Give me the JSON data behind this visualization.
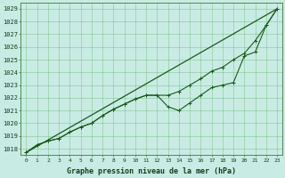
{
  "xlabel": "Graphe pression niveau de la mer (hPa)",
  "ylim": [
    1017.5,
    1029.5
  ],
  "xlim": [
    -0.5,
    23.5
  ],
  "yticks": [
    1018,
    1019,
    1020,
    1021,
    1022,
    1023,
    1024,
    1025,
    1026,
    1027,
    1028,
    1029
  ],
  "xticks": [
    0,
    1,
    2,
    3,
    4,
    5,
    6,
    7,
    8,
    9,
    10,
    11,
    12,
    13,
    14,
    15,
    16,
    17,
    18,
    19,
    20,
    21,
    22,
    23
  ],
  "background_color": "#c8ece4",
  "grid_color": "#5aaa5a",
  "line_color": "#1a5a1a",
  "marker_color": "#1a5a1a",
  "trend_x": [
    0,
    23
  ],
  "trend_y": [
    1017.7,
    1029.0
  ],
  "data_line1": [
    1017.7,
    1018.3,
    1018.6,
    1018.8,
    1019.3,
    1019.7,
    1020.0,
    1020.6,
    1021.1,
    1021.5,
    1021.9,
    1022.2,
    1022.2,
    1022.2,
    1022.5,
    1023.0,
    1023.5,
    1024.1,
    1024.4,
    1025.0,
    1025.5,
    1026.5,
    1027.7,
    1029.0
  ],
  "data_line2": [
    1017.7,
    1018.3,
    1018.6,
    1018.8,
    1019.3,
    1019.7,
    1020.0,
    1020.6,
    1021.1,
    1021.5,
    1021.9,
    1022.2,
    1022.2,
    1021.3,
    1021.0,
    1021.6,
    1022.2,
    1022.8,
    1023.0,
    1023.2,
    1025.3,
    1025.6,
    1027.7,
    1029.0
  ],
  "xlabel_fontsize": 6.0,
  "ytick_fontsize": 5.0,
  "xtick_fontsize": 4.5
}
